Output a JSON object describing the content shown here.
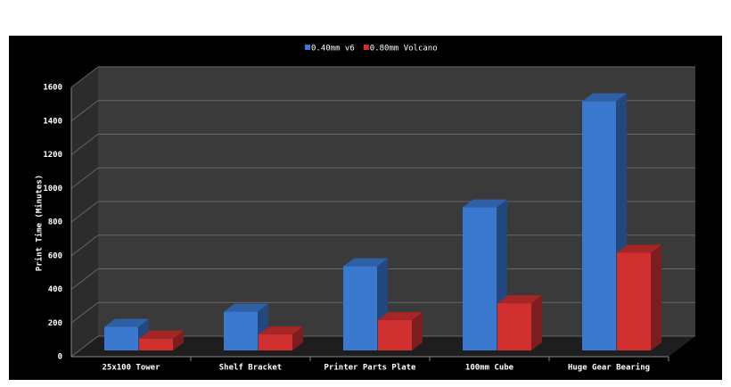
{
  "chart_data": {
    "type": "bar",
    "y_label": "Print Time (Minutes)",
    "categories": [
      "25x100 Tower",
      "Shelf Bracket",
      "Printer Parts Plate",
      "100mm Cube",
      "Huge Gear Bearing"
    ],
    "series": [
      {
        "name": "0.40mm v6",
        "color": "#3b78d0",
        "values": [
          140,
          230,
          500,
          850,
          1480
        ]
      },
      {
        "name": "0.80mm Volcano",
        "color": "#d03030",
        "values": [
          70,
          95,
          180,
          280,
          580
        ]
      }
    ],
    "ylim": [
      0,
      1600
    ],
    "yticks": [
      0,
      200,
      400,
      600,
      800,
      1000,
      1200,
      1400,
      1600
    ],
    "grid": true
  }
}
